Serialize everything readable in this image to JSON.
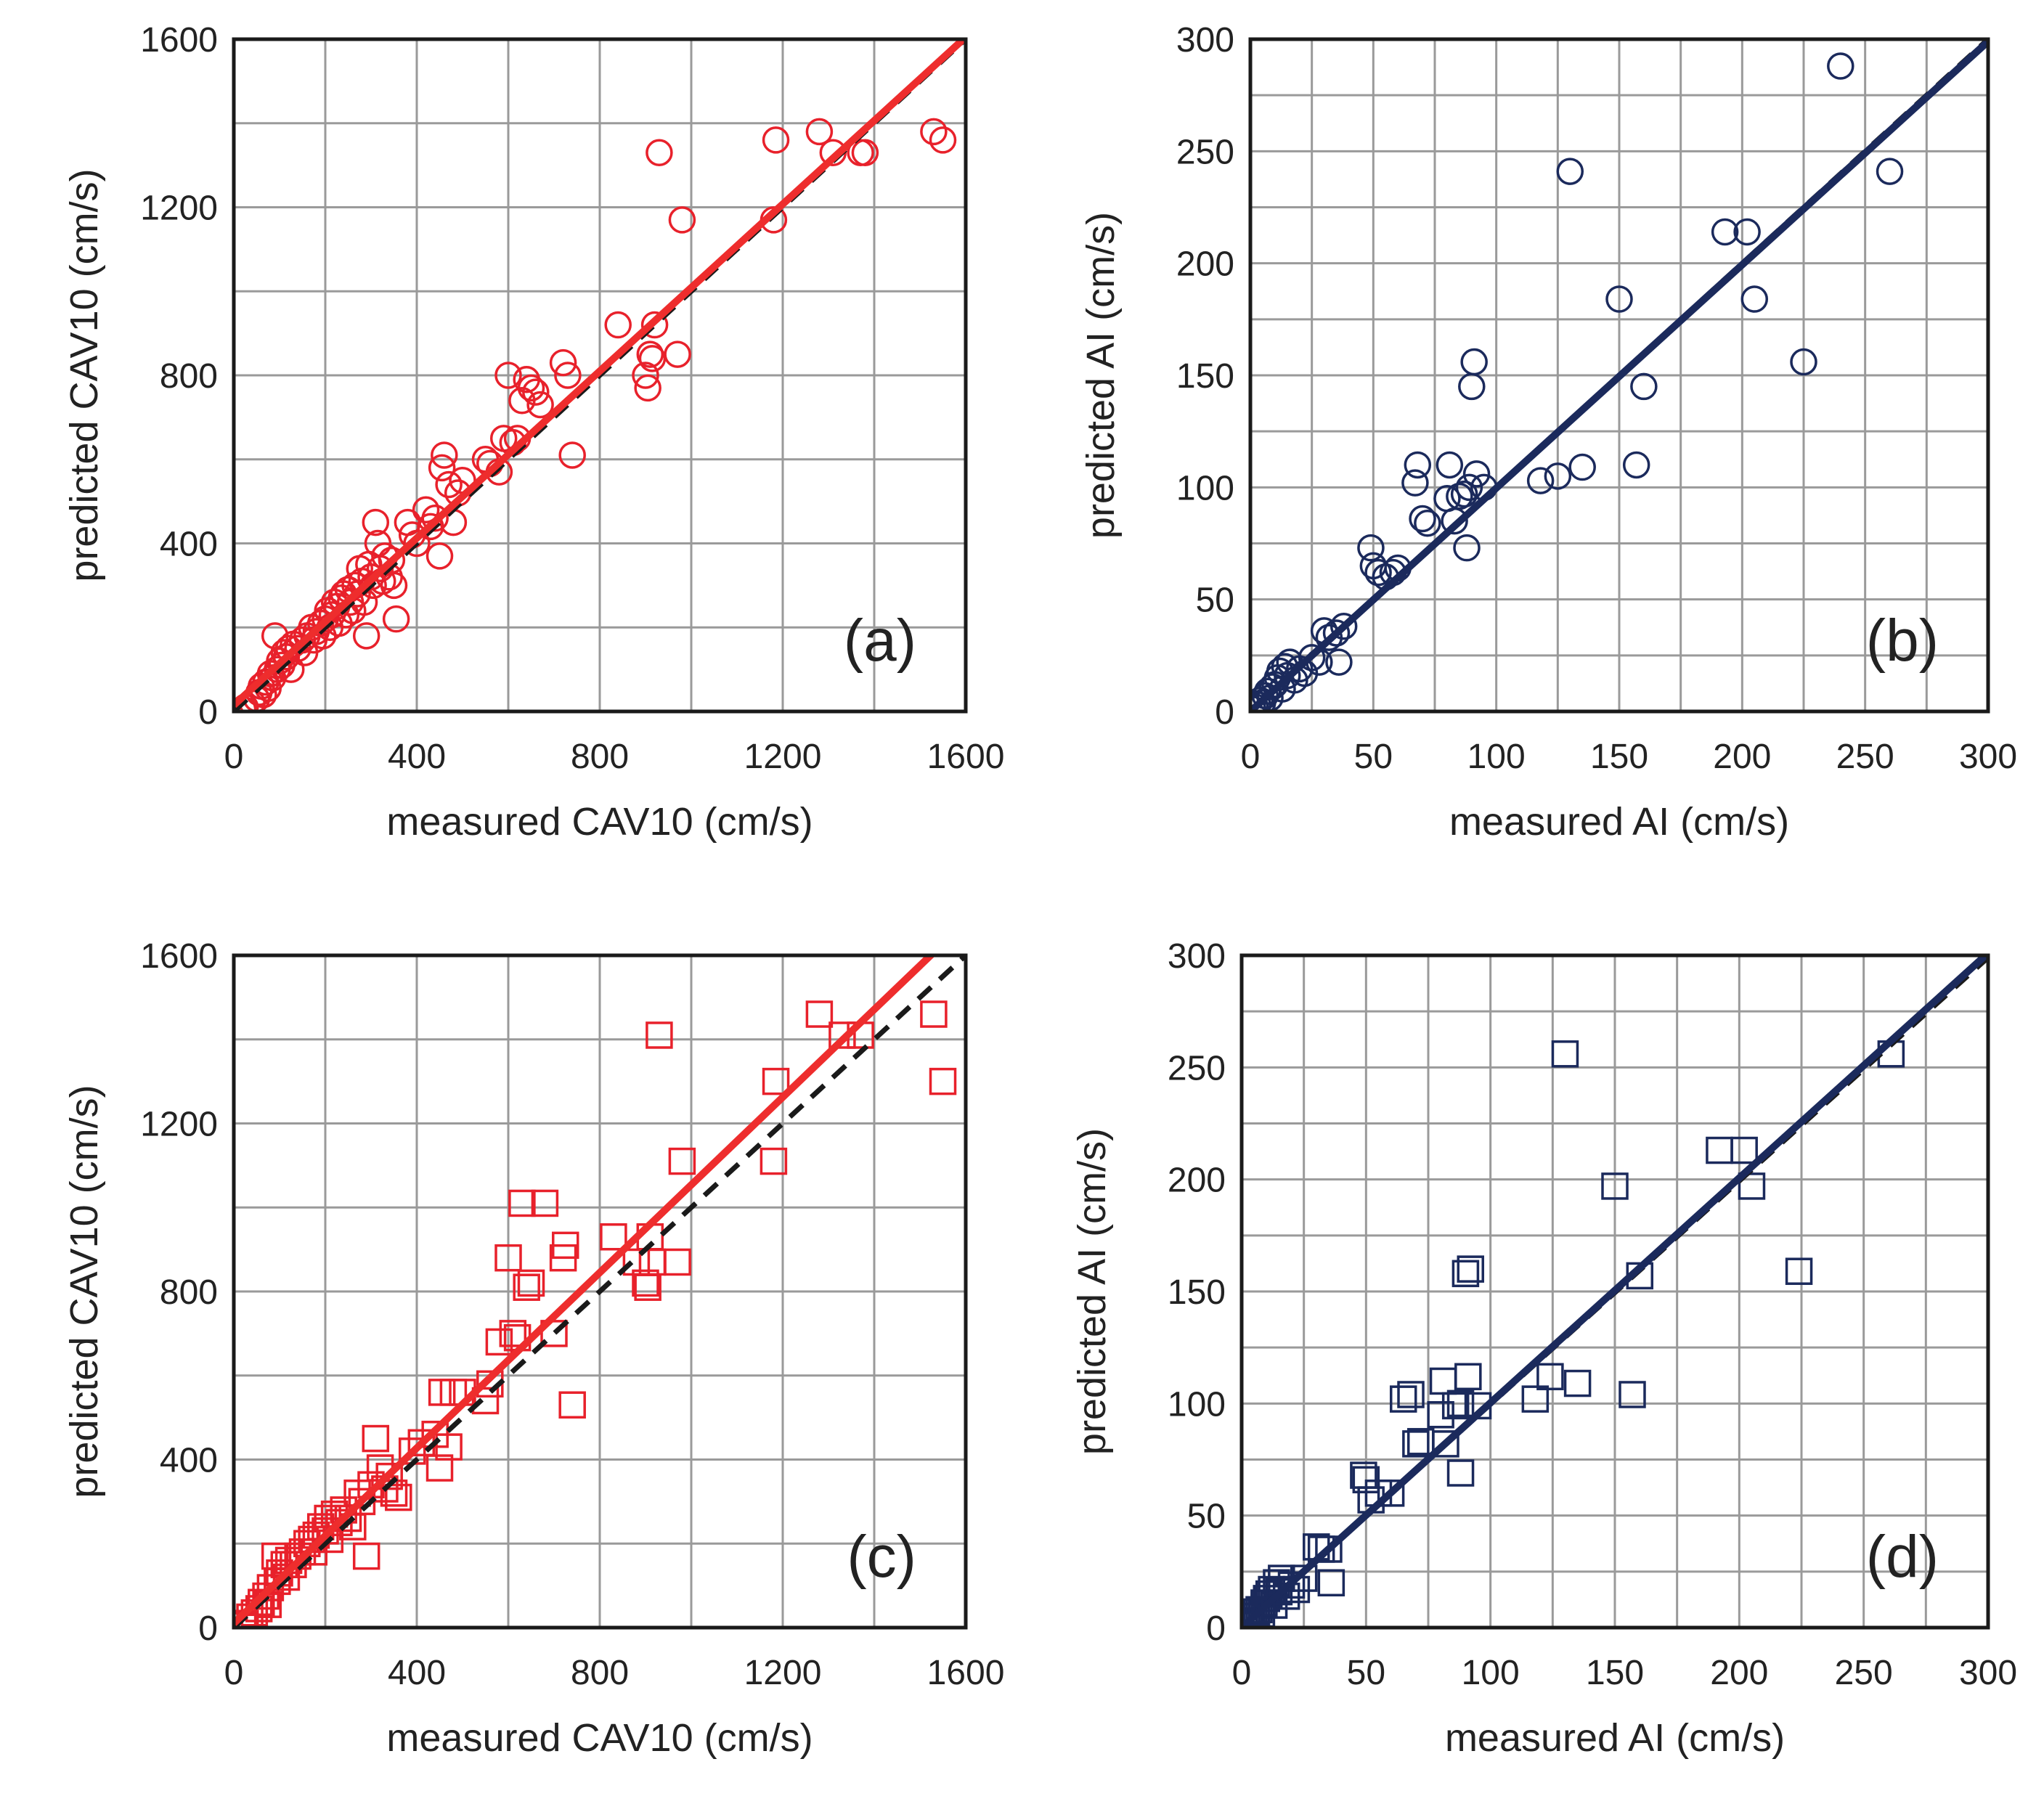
{
  "figure": {
    "background": "#ffffff"
  },
  "chart_data": [
    {
      "id": "a",
      "tag": "(a)",
      "type": "scatter",
      "marker": "circle",
      "color": "#e8212b",
      "fit_color": "#ee2d2d",
      "identity_color": "#1a1a1a",
      "xlabel": "measured CAV10 (cm/s)",
      "ylabel": "predicted CAV10 (cm/s)",
      "xlim": [
        0,
        1600
      ],
      "ylim": [
        0,
        1600
      ],
      "xticks": [
        0,
        400,
        800,
        1200,
        1600
      ],
      "yticks": [
        0,
        400,
        800,
        1200,
        1600
      ],
      "xgrid_step": 200,
      "ygrid_step": 200,
      "fit_line": {
        "x": [
          0,
          1600
        ],
        "y": [
          15,
          1605
        ]
      },
      "identity_line": {
        "x": [
          0,
          1600
        ],
        "y": [
          0,
          1600
        ]
      },
      "points": [
        [
          20,
          5
        ],
        [
          25,
          10
        ],
        [
          40,
          20
        ],
        [
          50,
          30
        ],
        [
          55,
          45
        ],
        [
          60,
          60
        ],
        [
          65,
          40
        ],
        [
          70,
          70
        ],
        [
          75,
          55
        ],
        [
          80,
          90
        ],
        [
          85,
          80
        ],
        [
          90,
          180
        ],
        [
          95,
          100
        ],
        [
          100,
          120
        ],
        [
          105,
          110
        ],
        [
          110,
          140
        ],
        [
          115,
          130
        ],
        [
          120,
          150
        ],
        [
          125,
          100
        ],
        [
          130,
          160
        ],
        [
          140,
          150
        ],
        [
          150,
          170
        ],
        [
          155,
          140
        ],
        [
          160,
          180
        ],
        [
          170,
          200
        ],
        [
          175,
          170
        ],
        [
          180,
          190
        ],
        [
          190,
          210
        ],
        [
          195,
          180
        ],
        [
          200,
          220
        ],
        [
          205,
          240
        ],
        [
          210,
          200
        ],
        [
          215,
          230
        ],
        [
          220,
          260
        ],
        [
          225,
          250
        ],
        [
          230,
          210
        ],
        [
          235,
          270
        ],
        [
          240,
          280
        ],
        [
          245,
          230
        ],
        [
          250,
          290
        ],
        [
          255,
          260
        ],
        [
          260,
          240
        ],
        [
          265,
          300
        ],
        [
          270,
          280
        ],
        [
          275,
          340
        ],
        [
          280,
          310
        ],
        [
          285,
          260
        ],
        [
          290,
          180
        ],
        [
          295,
          350
        ],
        [
          300,
          320
        ],
        [
          305,
          300
        ],
        [
          310,
          450
        ],
        [
          315,
          400
        ],
        [
          320,
          340
        ],
        [
          325,
          310
        ],
        [
          330,
          370
        ],
        [
          340,
          320
        ],
        [
          345,
          360
        ],
        [
          350,
          300
        ],
        [
          355,
          220
        ],
        [
          380,
          450
        ],
        [
          390,
          420
        ],
        [
          400,
          400
        ],
        [
          420,
          480
        ],
        [
          430,
          440
        ],
        [
          440,
          460
        ],
        [
          450,
          370
        ],
        [
          455,
          580
        ],
        [
          460,
          610
        ],
        [
          470,
          540
        ],
        [
          480,
          450
        ],
        [
          490,
          520
        ],
        [
          500,
          550
        ],
        [
          550,
          600
        ],
        [
          560,
          590
        ],
        [
          580,
          570
        ],
        [
          590,
          650
        ],
        [
          600,
          800
        ],
        [
          610,
          640
        ],
        [
          620,
          650
        ],
        [
          630,
          740
        ],
        [
          640,
          790
        ],
        [
          650,
          770
        ],
        [
          660,
          760
        ],
        [
          670,
          730
        ],
        [
          720,
          830
        ],
        [
          730,
          800
        ],
        [
          740,
          610
        ],
        [
          840,
          920
        ],
        [
          900,
          800
        ],
        [
          905,
          770
        ],
        [
          910,
          850
        ],
        [
          915,
          840
        ],
        [
          920,
          920
        ],
        [
          930,
          1330
        ],
        [
          970,
          850
        ],
        [
          980,
          1170
        ],
        [
          1180,
          1170
        ],
        [
          1185,
          1360
        ],
        [
          1280,
          1380
        ],
        [
          1310,
          1330
        ],
        [
          1370,
          1330
        ],
        [
          1380,
          1330
        ],
        [
          1530,
          1380
        ],
        [
          1550,
          1360
        ]
      ]
    },
    {
      "id": "b",
      "tag": "(b)",
      "type": "scatter",
      "marker": "circle",
      "color": "#1b2a5c",
      "fit_color": "#1b2a5c",
      "identity_color": "#1a1a1a",
      "xlabel": "measured AI (cm/s)",
      "ylabel": "predicted AI (cm/s)",
      "xlim": [
        0,
        300
      ],
      "ylim": [
        0,
        300
      ],
      "xticks": [
        0,
        50,
        100,
        150,
        200,
        250,
        300
      ],
      "yticks": [
        0,
        50,
        100,
        150,
        200,
        250,
        300
      ],
      "xgrid_step": 25,
      "ygrid_step": 25,
      "fit_line": {
        "x": [
          0,
          300
        ],
        "y": [
          0,
          299
        ]
      },
      "identity_line": {
        "x": [
          0,
          300
        ],
        "y": [
          0,
          300
        ]
      },
      "points": [
        [
          1,
          1
        ],
        [
          2,
          2
        ],
        [
          3,
          3
        ],
        [
          4,
          5
        ],
        [
          5,
          4
        ],
        [
          6,
          7
        ],
        [
          7,
          9
        ],
        [
          8,
          6
        ],
        [
          9,
          11
        ],
        [
          10,
          12
        ],
        [
          11,
          15
        ],
        [
          12,
          18
        ],
        [
          13,
          10
        ],
        [
          14,
          20
        ],
        [
          15,
          16
        ],
        [
          16,
          22
        ],
        [
          18,
          14
        ],
        [
          20,
          19
        ],
        [
          22,
          17
        ],
        [
          25,
          24
        ],
        [
          28,
          22
        ],
        [
          30,
          36
        ],
        [
          32,
          33
        ],
        [
          35,
          35
        ],
        [
          36,
          22
        ],
        [
          38,
          38
        ],
        [
          49,
          73
        ],
        [
          50,
          65
        ],
        [
          52,
          62
        ],
        [
          55,
          60
        ],
        [
          58,
          62
        ],
        [
          60,
          64
        ],
        [
          67,
          102
        ],
        [
          68,
          110
        ],
        [
          70,
          86
        ],
        [
          72,
          84
        ],
        [
          80,
          95
        ],
        [
          81,
          110
        ],
        [
          83,
          85
        ],
        [
          85,
          96
        ],
        [
          87,
          97
        ],
        [
          88,
          73
        ],
        [
          89,
          100
        ],
        [
          90,
          145
        ],
        [
          91,
          156
        ],
        [
          92,
          106
        ],
        [
          95,
          100
        ],
        [
          118,
          103
        ],
        [
          125,
          105
        ],
        [
          130,
          241
        ],
        [
          135,
          109
        ],
        [
          150,
          184
        ],
        [
          157,
          110
        ],
        [
          160,
          145
        ],
        [
          193,
          214
        ],
        [
          202,
          214
        ],
        [
          205,
          184
        ],
        [
          225,
          156
        ],
        [
          240,
          288
        ],
        [
          260,
          241
        ]
      ]
    },
    {
      "id": "c",
      "tag": "(c)",
      "type": "scatter",
      "marker": "square",
      "color": "#e8212b",
      "fit_color": "#ee2d2d",
      "identity_color": "#1a1a1a",
      "xlabel": "measured CAV10 (cm/s)",
      "ylabel": "predicted CAV10 (cm/s)",
      "xlim": [
        0,
        1600
      ],
      "ylim": [
        0,
        1600
      ],
      "xticks": [
        0,
        400,
        800,
        1200,
        1600
      ],
      "yticks": [
        0,
        400,
        800,
        1200,
        1600
      ],
      "xgrid_step": 200,
      "ygrid_step": 200,
      "fit_line": {
        "x": [
          0,
          1600
        ],
        "y": [
          10,
          1680
        ]
      },
      "identity_line": {
        "x": [
          0,
          1600
        ],
        "y": [
          0,
          1600
        ]
      },
      "points": [
        [
          20,
          5
        ],
        [
          25,
          10
        ],
        [
          35,
          25
        ],
        [
          45,
          35
        ],
        [
          55,
          45
        ],
        [
          60,
          60
        ],
        [
          70,
          75
        ],
        [
          75,
          55
        ],
        [
          80,
          95
        ],
        [
          90,
          170
        ],
        [
          95,
          110
        ],
        [
          100,
          130
        ],
        [
          110,
          150
        ],
        [
          115,
          120
        ],
        [
          120,
          160
        ],
        [
          130,
          150
        ],
        [
          140,
          170
        ],
        [
          150,
          180
        ],
        [
          160,
          200
        ],
        [
          170,
          210
        ],
        [
          175,
          180
        ],
        [
          180,
          220
        ],
        [
          190,
          240
        ],
        [
          200,
          230
        ],
        [
          205,
          260
        ],
        [
          210,
          210
        ],
        [
          220,
          270
        ],
        [
          230,
          250
        ],
        [
          240,
          280
        ],
        [
          250,
          260
        ],
        [
          260,
          240
        ],
        [
          270,
          320
        ],
        [
          280,
          300
        ],
        [
          290,
          170
        ],
        [
          300,
          340
        ],
        [
          310,
          450
        ],
        [
          320,
          380
        ],
        [
          330,
          330
        ],
        [
          340,
          360
        ],
        [
          350,
          320
        ],
        [
          360,
          310
        ],
        [
          390,
          420
        ],
        [
          410,
          440
        ],
        [
          440,
          460
        ],
        [
          450,
          380
        ],
        [
          455,
          560
        ],
        [
          470,
          430
        ],
        [
          480,
          560
        ],
        [
          500,
          560
        ],
        [
          550,
          540
        ],
        [
          560,
          580
        ],
        [
          580,
          680
        ],
        [
          600,
          880
        ],
        [
          610,
          700
        ],
        [
          620,
          690
        ],
        [
          630,
          1010
        ],
        [
          640,
          810
        ],
        [
          650,
          820
        ],
        [
          680,
          1010
        ],
        [
          700,
          700
        ],
        [
          720,
          880
        ],
        [
          725,
          910
        ],
        [
          740,
          530
        ],
        [
          830,
          930
        ],
        [
          880,
          870
        ],
        [
          900,
          820
        ],
        [
          905,
          810
        ],
        [
          910,
          930
        ],
        [
          915,
          870
        ],
        [
          930,
          1410
        ],
        [
          970,
          870
        ],
        [
          980,
          1110
        ],
        [
          1180,
          1110
        ],
        [
          1185,
          1300
        ],
        [
          1280,
          1460
        ],
        [
          1330,
          1410
        ],
        [
          1370,
          1410
        ],
        [
          1530,
          1460
        ],
        [
          1550,
          1300
        ]
      ]
    },
    {
      "id": "d",
      "tag": "(d)",
      "type": "scatter",
      "marker": "square",
      "color": "#1b2a5c",
      "fit_color": "#1b2a5c",
      "identity_color": "#1a1a1a",
      "xlabel": "measured AI (cm/s)",
      "ylabel": "predicted AI (cm/s)",
      "xlim": [
        0,
        300
      ],
      "ylim": [
        0,
        300
      ],
      "xticks": [
        0,
        50,
        100,
        150,
        200,
        250,
        300
      ],
      "yticks": [
        0,
        50,
        100,
        150,
        200,
        250,
        300
      ],
      "xgrid_step": 25,
      "ygrid_step": 25,
      "fit_line": {
        "x": [
          0,
          300
        ],
        "y": [
          0,
          301
        ]
      },
      "identity_line": {
        "x": [
          0,
          300
        ],
        "y": [
          0,
          299
        ]
      },
      "points": [
        [
          1,
          1
        ],
        [
          2,
          2
        ],
        [
          3,
          3
        ],
        [
          4,
          5
        ],
        [
          5,
          3
        ],
        [
          6,
          7
        ],
        [
          7,
          8
        ],
        [
          8,
          6
        ],
        [
          9,
          11
        ],
        [
          10,
          13
        ],
        [
          11,
          15
        ],
        [
          12,
          17
        ],
        [
          13,
          10
        ],
        [
          14,
          20
        ],
        [
          15,
          16
        ],
        [
          16,
          22
        ],
        [
          18,
          14
        ],
        [
          20,
          19
        ],
        [
          22,
          17
        ],
        [
          25,
          22
        ],
        [
          30,
          36
        ],
        [
          32,
          35
        ],
        [
          35,
          35
        ],
        [
          36,
          20
        ],
        [
          49,
          68
        ],
        [
          50,
          66
        ],
        [
          52,
          57
        ],
        [
          55,
          60
        ],
        [
          60,
          60
        ],
        [
          65,
          102
        ],
        [
          68,
          104
        ],
        [
          70,
          82
        ],
        [
          72,
          83
        ],
        [
          80,
          95
        ],
        [
          81,
          110
        ],
        [
          82,
          82
        ],
        [
          86,
          99
        ],
        [
          88,
          100
        ],
        [
          88,
          69
        ],
        [
          90,
          158
        ],
        [
          91,
          112
        ],
        [
          92,
          160
        ],
        [
          95,
          99
        ],
        [
          118,
          102
        ],
        [
          124,
          112
        ],
        [
          130,
          256
        ],
        [
          135,
          109
        ],
        [
          150,
          197
        ],
        [
          157,
          104
        ],
        [
          160,
          157
        ],
        [
          192,
          213
        ],
        [
          202,
          213
        ],
        [
          205,
          197
        ],
        [
          224,
          159
        ],
        [
          261,
          256
        ]
      ]
    }
  ]
}
